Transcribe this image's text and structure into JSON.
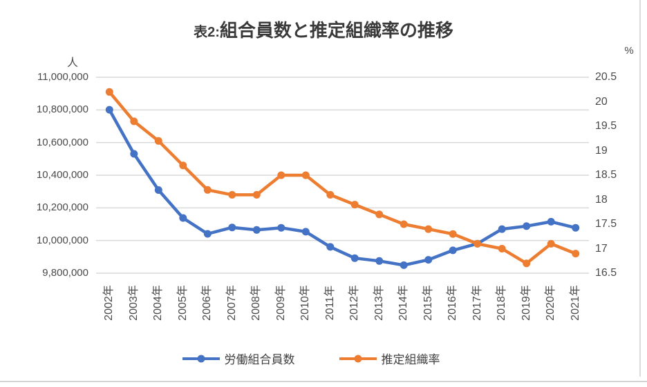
{
  "chart_data": {
    "type": "line",
    "title": "表2:組合員数と推定組織率の推移",
    "title_prefix": "表2:",
    "title_main": "組合員数と推定組織率の推移",
    "grid": "horizontal",
    "legend_position": "bottom",
    "categories": [
      "2002年",
      "2003年",
      "2004年",
      "2005年",
      "2006年",
      "2007年",
      "2008年",
      "2009年",
      "2010年",
      "2011年",
      "2012年",
      "2013年",
      "2014年",
      "2015年",
      "2016年",
      "2017年",
      "2018年",
      "2019年",
      "2020年",
      "2021年"
    ],
    "series": [
      {
        "name": "労働組合員数",
        "axis": "left",
        "color": "#4472C4",
        "values": [
          10801000,
          10531000,
          10309000,
          10138000,
          10041000,
          10080000,
          10065000,
          10078000,
          10054000,
          9961000,
          9892000,
          9875000,
          9849000,
          9882000,
          9940000,
          9981000,
          10070000,
          10088000,
          10115000,
          10078000
        ]
      },
      {
        "name": "推定組織率",
        "axis": "right",
        "color": "#ED7D31",
        "values": [
          20.2,
          19.6,
          19.2,
          18.7,
          18.2,
          18.1,
          18.1,
          18.5,
          18.5,
          18.1,
          17.9,
          17.7,
          17.5,
          17.4,
          17.3,
          17.1,
          17.0,
          16.7,
          17.1,
          16.9
        ]
      }
    ],
    "left_axis": {
      "unit": "人",
      "min": 9800000,
      "max": 11000000,
      "step": 200000,
      "ticks": [
        "11,000,000",
        "10,800,000",
        "10,600,000",
        "10,400,000",
        "10,200,000",
        "10,000,000",
        "9,800,000"
      ]
    },
    "right_axis": {
      "unit": "%",
      "min": 16.5,
      "max": 20.5,
      "step": 0.5,
      "ticks": [
        "20.5",
        "20",
        "19.5",
        "19",
        "18.5",
        "18",
        "17.5",
        "17",
        "16.5"
      ]
    },
    "gridline_color": "#d9d9d9"
  }
}
